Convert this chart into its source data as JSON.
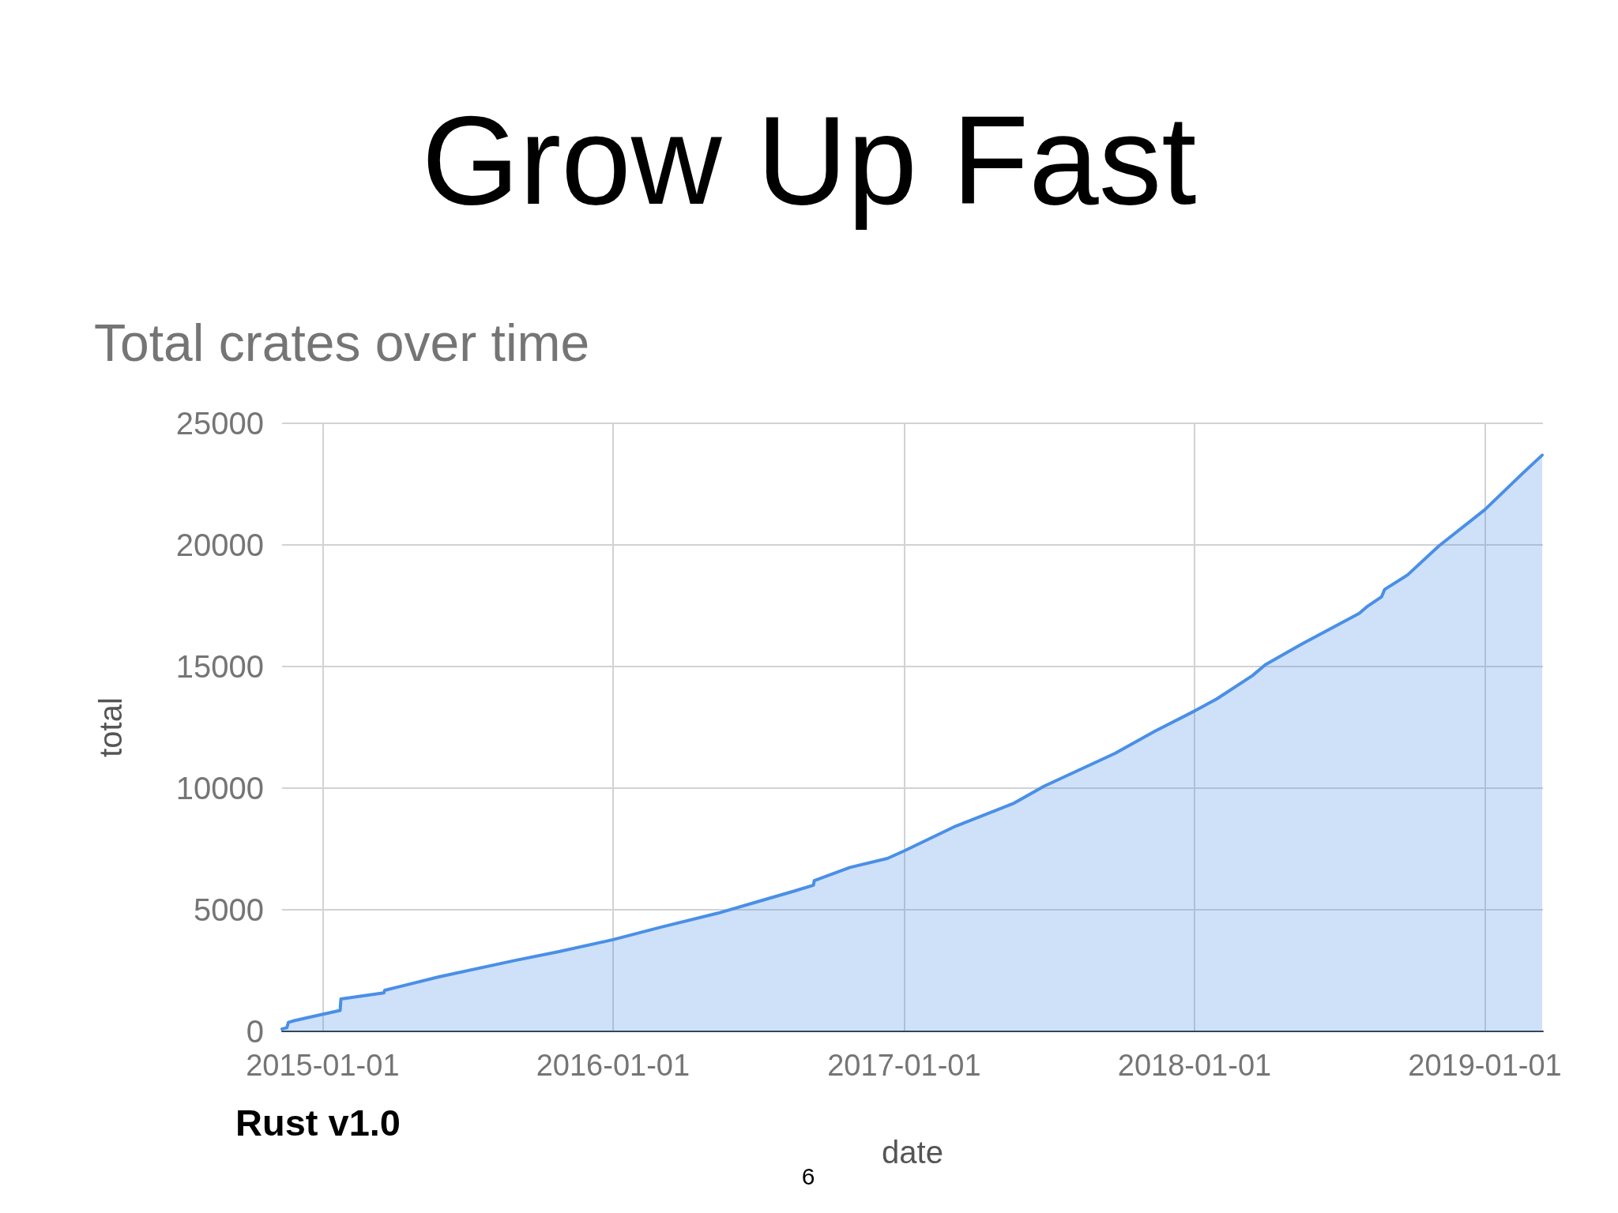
{
  "chart_data": {
    "type": "area",
    "title": "Grow Up Fast",
    "subtitle": "Total crates over time",
    "xlabel": "date",
    "ylabel": "total",
    "annotations": [
      "Rust v1.0",
      "6"
    ],
    "x": [
      "2014-11-11",
      "2014-11-17",
      "2014-11-19",
      "2014-11-24",
      "2014-12-18",
      "2015-01-23",
      "2015-01-24",
      "2015-03-19",
      "2015-03-20",
      "2015-05-27",
      "2015-08-30",
      "2015-10-25",
      "2016-01-01",
      "2016-03-01",
      "2016-05-12",
      "2016-07-06",
      "2016-08-17",
      "2016-09-09",
      "2016-09-10",
      "2016-10-25",
      "2016-12-11",
      "2017-01-01",
      "2017-03-07",
      "2017-05-19",
      "2017-06-26",
      "2017-09-23",
      "2017-11-12",
      "2018-01-01",
      "2018-01-29",
      "2018-03-15",
      "2018-03-31",
      "2018-05-15",
      "2018-07-27",
      "2018-08-07",
      "2018-08-24",
      "2018-08-28",
      "2018-09-26",
      "2018-11-04",
      "2019-01-01",
      "2019-02-18",
      "2019-03-14"
    ],
    "values": [
      100,
      150,
      370,
      420,
      600,
      860,
      1330,
      1580,
      1690,
      2240,
      2910,
      3280,
      3770,
      4280,
      4860,
      5380,
      5780,
      6010,
      6200,
      6740,
      7110,
      7420,
      8440,
      9380,
      10080,
      11430,
      12340,
      13170,
      13670,
      14630,
      15070,
      15910,
      17180,
      17490,
      17860,
      18170,
      18770,
      19950,
      21450,
      22960,
      23690
    ],
    "color": "#4a8fe7",
    "xlim": [
      "2014-11-11",
      "2019-03-15"
    ],
    "xticks": [
      "2015-01-01",
      "2016-01-01",
      "2017-01-01",
      "2018-01-01",
      "2019-01-01"
    ],
    "ylim": [
      0,
      25000
    ],
    "yticks": [
      0,
      5000,
      10000,
      15000,
      20000,
      25000
    ],
    "grid": true,
    "marker": "none"
  }
}
